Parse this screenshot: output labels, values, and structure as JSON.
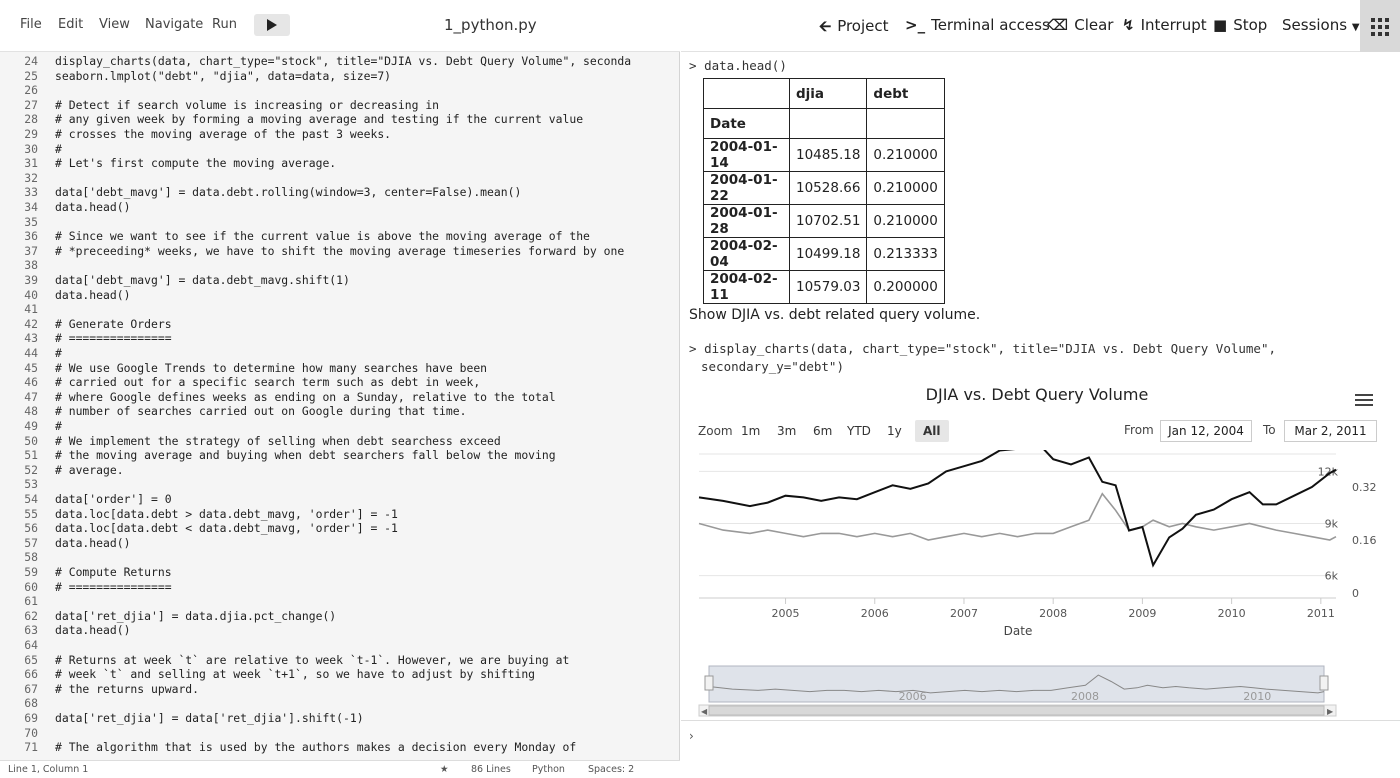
{
  "menu": {
    "items": [
      "File",
      "Edit",
      "View",
      "Navigate",
      "Run"
    ],
    "file_title": "1_python.py"
  },
  "editor": {
    "lines": [
      {
        "n": "24",
        "t": "display_charts(data, chart_type=\"stock\", title=\"DJIA vs. Debt Query Volume\", seconda"
      },
      {
        "n": "25",
        "t": "seaborn.lmplot(\"debt\", \"djia\", data=data, size=7)"
      },
      {
        "n": "26",
        "t": ""
      },
      {
        "n": "27",
        "t": "# Detect if search volume is increasing or decreasing in"
      },
      {
        "n": "28",
        "t": "# any given week by forming a moving average and testing if the current value"
      },
      {
        "n": "29",
        "t": "# crosses the moving average of the past 3 weeks."
      },
      {
        "n": "30",
        "t": "#"
      },
      {
        "n": "31",
        "t": "# Let's first compute the moving average."
      },
      {
        "n": "32",
        "t": ""
      },
      {
        "n": "33",
        "t": "data['debt_mavg'] = data.debt.rolling(window=3, center=False).mean()"
      },
      {
        "n": "34",
        "t": "data.head()"
      },
      {
        "n": "35",
        "t": ""
      },
      {
        "n": "36",
        "t": "# Since we want to see if the current value is above the moving average of the"
      },
      {
        "n": "37",
        "t": "# *preceeding* weeks, we have to shift the moving average timeseries forward by one"
      },
      {
        "n": "38",
        "t": ""
      },
      {
        "n": "39",
        "t": "data['debt_mavg'] = data.debt_mavg.shift(1)"
      },
      {
        "n": "40",
        "t": "data.head()"
      },
      {
        "n": "41",
        "t": ""
      },
      {
        "n": "42",
        "t": "# Generate Orders"
      },
      {
        "n": "43",
        "t": "# ==============="
      },
      {
        "n": "44",
        "t": "#"
      },
      {
        "n": "45",
        "t": "# We use Google Trends to determine how many searches have been"
      },
      {
        "n": "46",
        "t": "# carried out for a specific search term such as debt in week,"
      },
      {
        "n": "47",
        "t": "# where Google defines weeks as ending on a Sunday, relative to the total"
      },
      {
        "n": "48",
        "t": "# number of searches carried out on Google during that time."
      },
      {
        "n": "49",
        "t": "#"
      },
      {
        "n": "50",
        "t": "# We implement the strategy of selling when debt searchess exceed"
      },
      {
        "n": "51",
        "t": "# the moving average and buying when debt searchers fall below the moving"
      },
      {
        "n": "52",
        "t": "# average."
      },
      {
        "n": "53",
        "t": ""
      },
      {
        "n": "54",
        "t": "data['order'] = 0"
      },
      {
        "n": "55",
        "t": "data.loc[data.debt > data.debt_mavg, 'order'] = -1"
      },
      {
        "n": "56",
        "t": "data.loc[data.debt < data.debt_mavg, 'order'] = -1"
      },
      {
        "n": "57",
        "t": "data.head()"
      },
      {
        "n": "58",
        "t": ""
      },
      {
        "n": "59",
        "t": "# Compute Returns"
      },
      {
        "n": "60",
        "t": "# ==============="
      },
      {
        "n": "61",
        "t": ""
      },
      {
        "n": "62",
        "t": "data['ret_djia'] = data.djia.pct_change()"
      },
      {
        "n": "63",
        "t": "data.head()"
      },
      {
        "n": "64",
        "t": ""
      },
      {
        "n": "65",
        "t": "# Returns at week `t` are relative to week `t-1`. However, we are buying at"
      },
      {
        "n": "66",
        "t": "# week `t` and selling at week `t+1`, so we have to adjust by shifting"
      },
      {
        "n": "67",
        "t": "# the returns upward."
      },
      {
        "n": "68",
        "t": ""
      },
      {
        "n": "69",
        "t": "data['ret_djia'] = data['ret_djia'].shift(-1)"
      },
      {
        "n": "70",
        "t": ""
      },
      {
        "n": "71",
        "t": "# The algorithm that is used by the authors makes a decision every Monday of"
      }
    ]
  },
  "status": {
    "position": "Line 1, Column 1",
    "star": "★",
    "lines": "86 Lines",
    "language": "Python",
    "spaces": "Spaces: 2"
  },
  "toolbar": {
    "project": "Project",
    "terminal": "Terminal access",
    "clear": "Clear",
    "interrupt": "Interrupt",
    "stop": "Stop",
    "sessions": "Sessions"
  },
  "console": {
    "cmd1": "data.head()",
    "table": {
      "columns": [
        "",
        "djia",
        "debt"
      ],
      "index_name": "Date",
      "rows": [
        [
          "2004-01-14",
          "10485.18",
          "0.210000"
        ],
        [
          "2004-01-22",
          "10528.66",
          "0.210000"
        ],
        [
          "2004-01-28",
          "10702.51",
          "0.210000"
        ],
        [
          "2004-02-04",
          "10499.18",
          "0.213333"
        ],
        [
          "2004-02-11",
          "10579.03",
          "0.200000"
        ]
      ]
    },
    "markdown": "Show DJIA vs. debt related query volume.",
    "cmd2_line1": "display_charts(data, chart_type=\"stock\", title=\"DJIA vs. Debt Query Volume\",",
    "cmd2_line2": "secondary_y=\"debt\")"
  },
  "chart_controls": {
    "zoom_label": "Zoom",
    "zoom_buttons": [
      "1m",
      "3m",
      "6m",
      "YTD",
      "1y",
      "All"
    ],
    "active_zoom": "All",
    "from_label": "From",
    "from_date": "Jan 12, 2004",
    "to_label": "To",
    "to_date": "Mar 2, 2011"
  },
  "chart_data": {
    "type": "line",
    "title": "DJIA vs. Debt Query Volume",
    "xlabel": "Date",
    "x_ticks": [
      "2005",
      "2006",
      "2007",
      "2008",
      "2009",
      "2010",
      "2011"
    ],
    "x_range": [
      2004.03,
      2011.17
    ],
    "y_left_ticks": [
      "6k",
      "9k",
      "12k"
    ],
    "y_left_range": [
      6000,
      12000
    ],
    "y_right_ticks": [
      "0",
      "0.16",
      "0.32"
    ],
    "y_right_range": [
      0,
      0.32
    ],
    "grid": true,
    "series": [
      {
        "axis": "left",
        "color": "#111111",
        "x": [
          2004.03,
          2004.3,
          2004.6,
          2004.8,
          2005.0,
          2005.2,
          2005.4,
          2005.6,
          2005.8,
          2006.0,
          2006.2,
          2006.4,
          2006.6,
          2006.8,
          2007.0,
          2007.2,
          2007.4,
          2007.6,
          2007.8,
          2008.0,
          2008.2,
          2008.4,
          2008.55,
          2008.7,
          2008.85,
          2009.0,
          2009.12,
          2009.3,
          2009.45,
          2009.6,
          2009.8,
          2010.0,
          2010.2,
          2010.35,
          2010.5,
          2010.7,
          2010.9,
          2011.1,
          2011.17
        ],
        "y": [
          10500,
          10300,
          10000,
          10200,
          10600,
          10500,
          10300,
          10500,
          10400,
          10800,
          11200,
          11000,
          11300,
          12000,
          12300,
          12600,
          13200,
          13300,
          13800,
          12700,
          12400,
          12800,
          11400,
          11200,
          8600,
          8800,
          6600,
          8200,
          8700,
          9500,
          9800,
          10400,
          10800,
          10100,
          10100,
          10600,
          11100,
          11900,
          12100
        ]
      },
      {
        "axis": "right",
        "color": "#999999",
        "x": [
          2004.03,
          2004.3,
          2004.6,
          2004.8,
          2005.0,
          2005.2,
          2005.4,
          2005.6,
          2005.8,
          2006.0,
          2006.2,
          2006.4,
          2006.6,
          2006.8,
          2007.0,
          2007.2,
          2007.4,
          2007.6,
          2007.8,
          2008.0,
          2008.2,
          2008.4,
          2008.55,
          2008.7,
          2008.85,
          2009.0,
          2009.12,
          2009.3,
          2009.45,
          2009.6,
          2009.8,
          2010.0,
          2010.2,
          2010.35,
          2010.5,
          2010.7,
          2010.9,
          2011.1,
          2011.17
        ],
        "y": [
          0.21,
          0.19,
          0.18,
          0.19,
          0.18,
          0.17,
          0.18,
          0.18,
          0.17,
          0.18,
          0.17,
          0.18,
          0.16,
          0.17,
          0.18,
          0.17,
          0.18,
          0.17,
          0.18,
          0.18,
          0.2,
          0.22,
          0.3,
          0.25,
          0.19,
          0.2,
          0.22,
          0.2,
          0.21,
          0.2,
          0.19,
          0.2,
          0.21,
          0.2,
          0.19,
          0.18,
          0.17,
          0.16,
          0.17
        ]
      }
    ],
    "navigator": {
      "x_ticks": [
        "2006",
        "2008",
        "2010"
      ]
    }
  }
}
